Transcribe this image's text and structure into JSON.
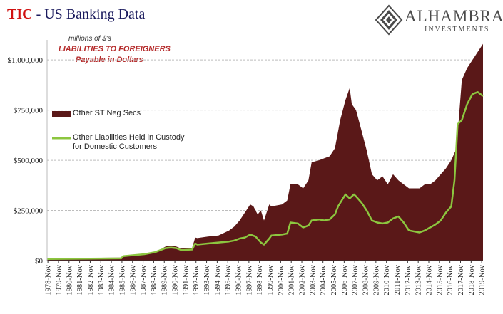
{
  "header": {
    "title_prefix": "TIC",
    "title_rest": " - US Banking Data"
  },
  "logo": {
    "name": "ALHAMBRA",
    "subtitle": "INVESTMENTS",
    "icon": "alhambra-diamond-icon"
  },
  "annotation": {
    "units": "millions of $'s",
    "line1": "LIABILITIES TO FOREIGNERS",
    "line2": "Payable in Dollars"
  },
  "colors": {
    "area": "#5a1818",
    "line": "#8cc63f",
    "grid": "#bdbdbd",
    "title_accent": "#d01010",
    "annotation": "#b52b2b"
  },
  "chart_data": {
    "type": "area",
    "title": "TIC - US Banking Data",
    "xlabel": "",
    "ylabel": "",
    "ylim": [
      0,
      1100000
    ],
    "yticks": [
      0,
      250000,
      500000,
      750000,
      1000000
    ],
    "ytick_labels": [
      "$0",
      "$250,000",
      "$500,000",
      "$750,000",
      "$1,000,000"
    ],
    "xticks": [
      "1978-Nov",
      "1979-Nov",
      "1980-Nov",
      "1981-Nov",
      "1982-Nov",
      "1983-Nov",
      "1984-Nov",
      "1985-Nov",
      "1986-Nov",
      "1987-Nov",
      "1988-Nov",
      "1989-Nov",
      "1990-Nov",
      "1991-Nov",
      "1992-Nov",
      "1993-Nov",
      "1994-Nov",
      "1995-Nov",
      "1996-Nov",
      "1997-Nov",
      "1998-Nov",
      "1999-Nov",
      "2000-Nov",
      "2001-Nov",
      "2002-Nov",
      "2003-Nov",
      "2004-Nov",
      "2005-Nov",
      "2006-Nov",
      "2007-Nov",
      "2008-Nov",
      "2009-Nov",
      "2010-Nov",
      "2011-Nov",
      "2012-Nov",
      "2013-Nov",
      "2014-Nov",
      "2015-Nov",
      "2016-Nov",
      "2017-Nov",
      "2018-Nov",
      "2019-Nov"
    ],
    "x_start": 1978.8,
    "x_end": 2020.0,
    "grid": true,
    "legend_position": "left",
    "series": [
      {
        "name": "Other ST Neg Secs",
        "style": "area",
        "points": [
          [
            1978.8,
            10000
          ],
          [
            1982,
            13000
          ],
          [
            1985.8,
            15000
          ],
          [
            1986,
            25000
          ],
          [
            1988,
            35000
          ],
          [
            1989,
            45000
          ],
          [
            1989.5,
            55000
          ],
          [
            1990,
            70000
          ],
          [
            1990.5,
            75000
          ],
          [
            1991,
            70000
          ],
          [
            1991.5,
            60000
          ],
          [
            1992.5,
            62000
          ],
          [
            1992.8,
            115000
          ],
          [
            1993,
            112000
          ],
          [
            1994,
            120000
          ],
          [
            1995,
            125000
          ],
          [
            1996,
            150000
          ],
          [
            1996.5,
            170000
          ],
          [
            1997,
            200000
          ],
          [
            1997.5,
            240000
          ],
          [
            1998,
            280000
          ],
          [
            1998.3,
            270000
          ],
          [
            1998.7,
            230000
          ],
          [
            1999,
            250000
          ],
          [
            1999.3,
            200000
          ],
          [
            1999.8,
            280000
          ],
          [
            2000,
            270000
          ],
          [
            2001,
            280000
          ],
          [
            2001.5,
            300000
          ],
          [
            2001.8,
            380000
          ],
          [
            2002.5,
            380000
          ],
          [
            2003,
            360000
          ],
          [
            2003.5,
            400000
          ],
          [
            2003.8,
            490000
          ],
          [
            2004.5,
            500000
          ],
          [
            2005,
            510000
          ],
          [
            2005.5,
            520000
          ],
          [
            2006,
            560000
          ],
          [
            2006.5,
            700000
          ],
          [
            2007,
            800000
          ],
          [
            2007.4,
            860000
          ],
          [
            2007.6,
            780000
          ],
          [
            2008,
            750000
          ],
          [
            2008.5,
            650000
          ],
          [
            2009,
            550000
          ],
          [
            2009.5,
            430000
          ],
          [
            2010,
            400000
          ],
          [
            2010.5,
            420000
          ],
          [
            2011,
            380000
          ],
          [
            2011.5,
            430000
          ],
          [
            2012,
            400000
          ],
          [
            2012.5,
            380000
          ],
          [
            2013,
            360000
          ],
          [
            2014,
            360000
          ],
          [
            2014.5,
            380000
          ],
          [
            2015,
            380000
          ],
          [
            2015.5,
            400000
          ],
          [
            2016,
            430000
          ],
          [
            2016.5,
            460000
          ],
          [
            2017,
            500000
          ],
          [
            2017.5,
            560000
          ],
          [
            2018,
            900000
          ],
          [
            2018.5,
            960000
          ],
          [
            2019,
            1000000
          ],
          [
            2019.5,
            1040000
          ],
          [
            2020,
            1080000
          ]
        ],
        "values": []
      },
      {
        "name": "Other Liabilities Held in Custody for Domestic Customers",
        "style": "line",
        "points": [
          [
            1978.8,
            8000
          ],
          [
            1985.8,
            11000
          ],
          [
            1986,
            22000
          ],
          [
            1988,
            32000
          ],
          [
            1989,
            42000
          ],
          [
            1989.5,
            52000
          ],
          [
            1990,
            62000
          ],
          [
            1990.5,
            65000
          ],
          [
            1991,
            62000
          ],
          [
            1991.5,
            52000
          ],
          [
            1992.5,
            55000
          ],
          [
            1992.8,
            85000
          ],
          [
            1993,
            80000
          ],
          [
            1994,
            85000
          ],
          [
            1995,
            90000
          ],
          [
            1996,
            95000
          ],
          [
            1996.5,
            100000
          ],
          [
            1997,
            110000
          ],
          [
            1997.5,
            115000
          ],
          [
            1998,
            130000
          ],
          [
            1998.5,
            120000
          ],
          [
            1999,
            90000
          ],
          [
            1999.3,
            80000
          ],
          [
            1999.8,
            110000
          ],
          [
            2000,
            125000
          ],
          [
            2001,
            130000
          ],
          [
            2001.5,
            135000
          ],
          [
            2001.8,
            190000
          ],
          [
            2002.5,
            185000
          ],
          [
            2003,
            165000
          ],
          [
            2003.5,
            175000
          ],
          [
            2003.8,
            200000
          ],
          [
            2004.5,
            205000
          ],
          [
            2005,
            200000
          ],
          [
            2005.5,
            205000
          ],
          [
            2006,
            230000
          ],
          [
            2006.3,
            270000
          ],
          [
            2007,
            330000
          ],
          [
            2007.4,
            310000
          ],
          [
            2007.8,
            330000
          ],
          [
            2008,
            320000
          ],
          [
            2008.5,
            290000
          ],
          [
            2009,
            250000
          ],
          [
            2009.5,
            200000
          ],
          [
            2010,
            190000
          ],
          [
            2010.5,
            185000
          ],
          [
            2011,
            190000
          ],
          [
            2011.5,
            210000
          ],
          [
            2012,
            220000
          ],
          [
            2012.5,
            190000
          ],
          [
            2013,
            150000
          ],
          [
            2014,
            140000
          ],
          [
            2014.5,
            150000
          ],
          [
            2015,
            165000
          ],
          [
            2015.5,
            180000
          ],
          [
            2016,
            200000
          ],
          [
            2016.5,
            240000
          ],
          [
            2017,
            270000
          ],
          [
            2017.3,
            400000
          ],
          [
            2017.6,
            680000
          ],
          [
            2018,
            700000
          ],
          [
            2018.5,
            780000
          ],
          [
            2019,
            830000
          ],
          [
            2019.5,
            840000
          ],
          [
            2020,
            820000
          ]
        ],
        "values": []
      }
    ]
  }
}
